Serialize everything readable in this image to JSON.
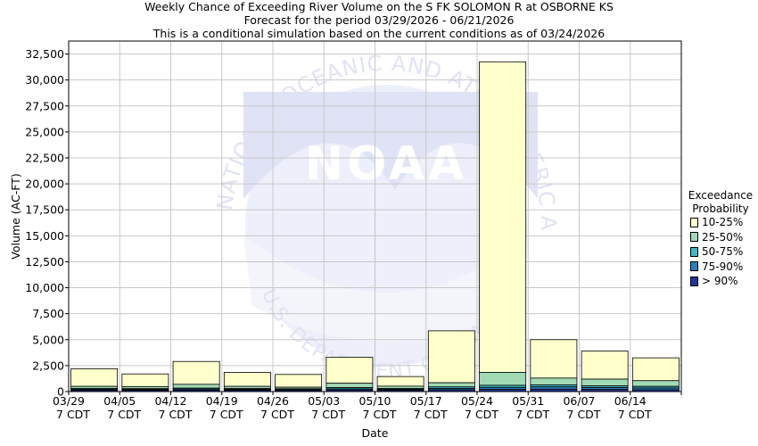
{
  "chart_data": {
    "type": "bar",
    "stacked": true,
    "title": "Weekly Chance of Exceeding River Volume on the S FK SOLOMON R at OSBORNE KS",
    "subtitle_1": "Forecast for the period 03/29/2026 - 06/21/2026",
    "subtitle_2": "This is a conditional simulation based on the current conditions as of 03/24/2026",
    "xlabel": "Date",
    "ylabel": "Volume (AC-FT)",
    "ylim": [
      0,
      33750
    ],
    "y_ticks": [
      "0",
      "2,500",
      "5,000",
      "7,500",
      "10,000",
      "12,500",
      "15,000",
      "17,500",
      "20,000",
      "22,500",
      "25,000",
      "27,500",
      "30,000",
      "32,500"
    ],
    "x_ticks": [
      {
        "date": "03/29",
        "time": "7 CDT"
      },
      {
        "date": "04/05",
        "time": "7 CDT"
      },
      {
        "date": "04/12",
        "time": "7 CDT"
      },
      {
        "date": "04/19",
        "time": "7 CDT"
      },
      {
        "date": "04/26",
        "time": "7 CDT"
      },
      {
        "date": "05/03",
        "time": "7 CDT"
      },
      {
        "date": "05/10",
        "time": "7 CDT"
      },
      {
        "date": "05/17",
        "time": "7 CDT"
      },
      {
        "date": "05/24",
        "time": "7 CDT"
      },
      {
        "date": "05/31",
        "time": "7 CDT"
      },
      {
        "date": "06/07",
        "time": "7 CDT"
      },
      {
        "date": "06/14",
        "time": "7 CDT"
      }
    ],
    "legend_title_1": "Exceedance",
    "legend_title_2": "Probability",
    "legend_position": "right",
    "grid": true,
    "series": [
      {
        "name": "10-25%",
        "color": "#ffffcc",
        "upper": [
          2200,
          1700,
          2900,
          1850,
          1650,
          3300,
          1450,
          5850,
          31750,
          5000,
          3900,
          3250
        ]
      },
      {
        "name": "25-50%",
        "color": "#a1dab4",
        "upper": [
          500,
          480,
          700,
          500,
          420,
          800,
          520,
          850,
          1850,
          1300,
          1200,
          1050
        ]
      },
      {
        "name": "50-75%",
        "color": "#41b6c4",
        "upper": [
          300,
          280,
          330,
          290,
          270,
          380,
          300,
          450,
          600,
          650,
          550,
          500
        ]
      },
      {
        "name": "75-90%",
        "color": "#2c7fb8",
        "upper": [
          220,
          200,
          240,
          210,
          190,
          250,
          210,
          300,
          400,
          450,
          380,
          350
        ]
      },
      {
        "name": "> 90%",
        "color": "#253494",
        "upper": [
          130,
          120,
          140,
          125,
          110,
          150,
          125,
          170,
          200,
          230,
          200,
          180
        ]
      }
    ]
  },
  "watermark": {
    "logo_text": "NOAA",
    "ring_text_top": "NATIONAL OCEANIC AND ATMOSPHERIC ADMINISTRATION",
    "ring_text_bottom": "U.S. DEPARTMENT OF COMMERCE"
  }
}
